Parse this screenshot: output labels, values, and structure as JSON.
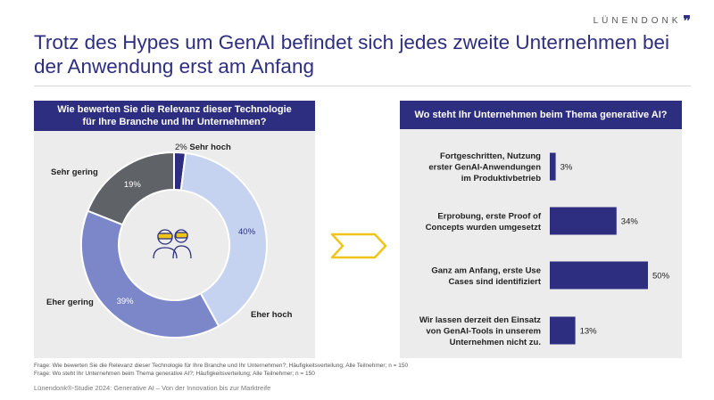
{
  "brand": {
    "name": "LÜNENDONK",
    "mark": "❞"
  },
  "slide": {
    "title": "Trotz des Hypes um GenAI befindet sich jedes zweite Unternehmen bei der Anwendung erst am Anfang"
  },
  "chart_data": [
    {
      "type": "pie",
      "donut": true,
      "title": "Wie bewerten Sie die Relevanz dieser Technologie für Ihre Branche und Ihr Unternehmen?",
      "categories": [
        "Sehr hoch",
        "Eher hoch",
        "Eher gering",
        "Sehr gering"
      ],
      "values": [
        2,
        40,
        39,
        19
      ],
      "value_labels": [
        "2%",
        "40%",
        "39%",
        "19%"
      ],
      "colors": [
        "#2e2e80",
        "#c5d3f0",
        "#7b87c9",
        "#5f6266"
      ],
      "center_icon": "vr-headset-people-icon"
    },
    {
      "type": "bar",
      "orientation": "horizontal",
      "title": "Wo steht Ihr Unternehmen beim Thema generative AI?",
      "categories": [
        "Fortgeschritten, Nutzung erster GenAI-Anwendungen im Produktivbetrieb",
        "Erprobung, erste Proof of Concepts wurden umgesetzt",
        "Ganz am Anfang, erste Use Cases sind identifiziert",
        "Wir lassen derzeit den Einsatz von GenAI-Tools in unserem Unternehmen nicht zu."
      ],
      "category_lines": [
        [
          "Fortgeschritten, Nutzung",
          "erster GenAI-Anwendungen",
          "im Produktivbetrieb"
        ],
        [
          "Erprobung, erste Proof of",
          "Concepts wurden umgesetzt"
        ],
        [
          "Ganz am Anfang, erste Use",
          "Cases sind identifiziert"
        ],
        [
          "Wir lassen derzeit den Einsatz",
          "von GenAI-Tools in unserem",
          "Unternehmen nicht zu."
        ]
      ],
      "values": [
        3,
        34,
        50,
        13
      ],
      "value_labels": [
        "3%",
        "34%",
        "50%",
        "13%"
      ],
      "xlim": [
        0,
        50
      ],
      "color": "#2e2e80"
    }
  ],
  "arrow": {
    "color": "#f0c419",
    "icon": "arrow-right-icon"
  },
  "footnotes": [
    "Frage: Wie bewerten Sie die Relevanz dieser Technologie für Ihre Branche und Ihr Unternehmen?; Häufigkeitsverteilung; Alle Teilnehmer; n = 150",
    "Frage: Wo steht Ihr Unternehmen beim Thema generative AI?; Häufigkeitsverteilung; Alle Teilnehmer; n = 150"
  ],
  "source": "Lünendonk®-Studie 2024: Generative AI – Von der Innovation bis zur Marktreife"
}
